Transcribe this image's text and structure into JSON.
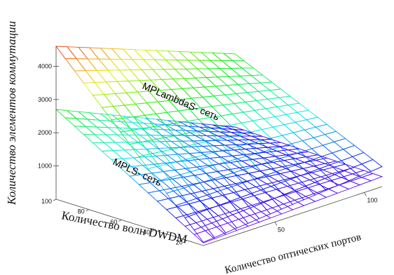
{
  "chart_data": {
    "type": "surface3d",
    "title": "",
    "axes": {
      "z": {
        "label": "Количество элементов коммутации",
        "ticks": [
          1000,
          2000,
          3000,
          4000
        ],
        "tick_labels": [
          "1000",
          "2000",
          "3000",
          "4000"
        ],
        "range": [
          0,
          4600
        ]
      },
      "x": {
        "label": "Количество волн DWDM",
        "ticks": [
          20,
          40,
          60,
          80,
          100
        ],
        "tick_labels": [
          "20",
          "40",
          "60",
          "80",
          "100"
        ],
        "range": [
          10,
          100
        ]
      },
      "y": {
        "label": "Количество оптических портов",
        "ticks": [
          50,
          100
        ],
        "tick_labels": [
          "50",
          "100"
        ],
        "range": [
          10,
          110
        ]
      }
    },
    "grid_resolution": 16,
    "series": [
      {
        "name": "MPLambdaS- сеть",
        "corner_values": {
          "x_max_y_min": 4600,
          "x_max_y_max": 2600,
          "x_min_y_min": 100,
          "x_min_y_max": 600
        }
      },
      {
        "name": "MPLS- сеть",
        "corner_values": {
          "x_max_y_min": 2700,
          "x_max_y_max": 400,
          "x_min_y_min": 80,
          "x_min_y_max": 300
        }
      }
    ]
  }
}
